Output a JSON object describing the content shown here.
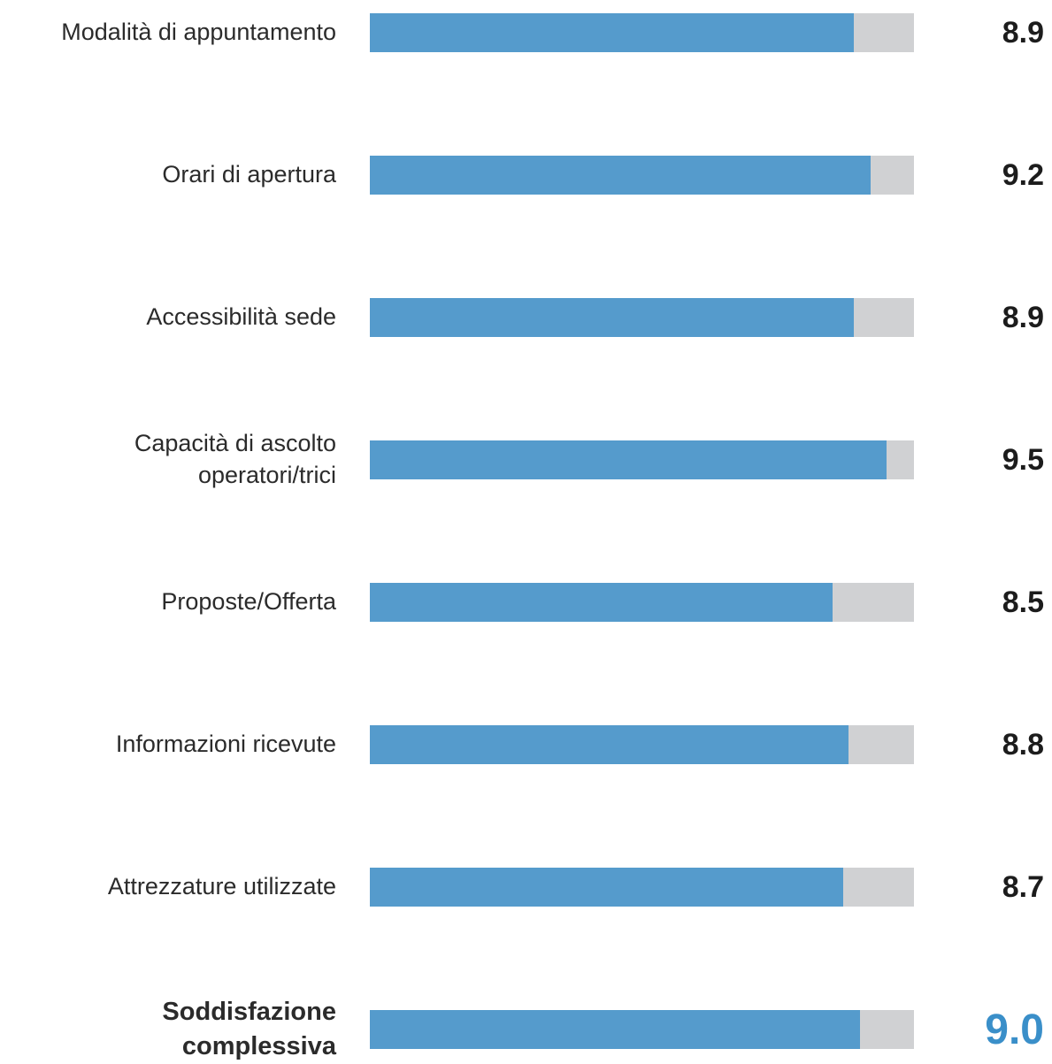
{
  "chart_data": {
    "type": "bar",
    "orientation": "horizontal",
    "xlim": [
      0,
      10
    ],
    "colors": {
      "fill": "#559bcc",
      "track": "#d0d1d3",
      "total_value": "#3a8fc9"
    },
    "categories": [
      "Modalità di appuntamento",
      "Orari di apertura",
      "Accessibilità sede",
      "Capacità di ascolto\noperatori/trici",
      "Proposte/Offerta",
      "Informazioni ricevute",
      "Attrezzature utilizzate",
      "Soddisfazione\ncomplessiva"
    ],
    "values": [
      8.9,
      9.2,
      8.9,
      9.5,
      8.5,
      8.8,
      8.7,
      9.0
    ],
    "value_labels": [
      "8.9",
      "9.2",
      "8.9",
      "9.5",
      "8.5",
      "8.8",
      "8.7",
      "9.0"
    ]
  }
}
